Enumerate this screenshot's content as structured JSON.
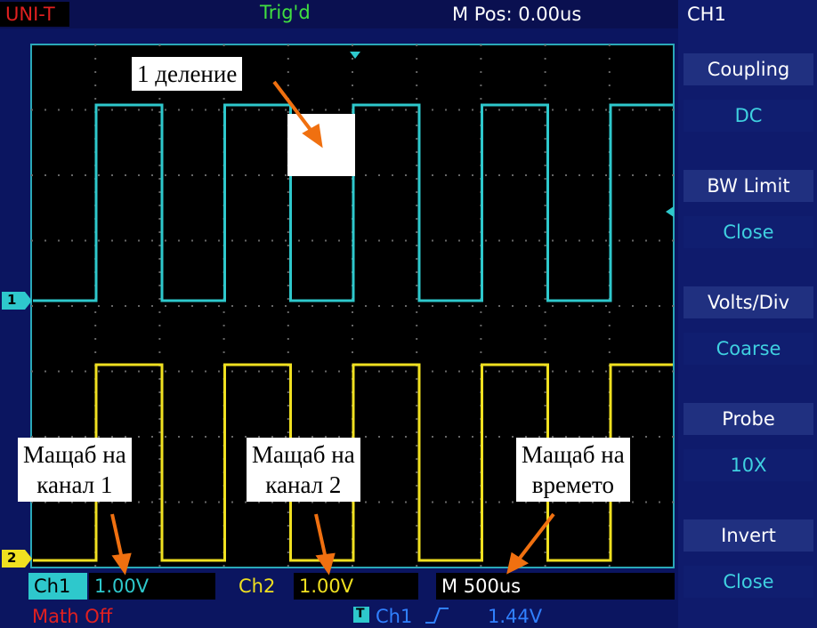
{
  "header": {
    "brand": "UNI-T",
    "status": "Trig'd",
    "position": "M Pos: 0.00us",
    "menu_title": "CH1"
  },
  "menu": [
    {
      "label": "Coupling",
      "value": "DC"
    },
    {
      "label": "BW  Limit",
      "value": "Close"
    },
    {
      "label": "Volts/Div",
      "value": "Coarse"
    },
    {
      "label": "Probe",
      "value": "10X"
    },
    {
      "label": "Invert",
      "value": "Close"
    }
  ],
  "markers": {
    "ch1": "1",
    "ch2": "2"
  },
  "footer": {
    "ch1_label": "Ch1",
    "ch1_scale": "1.00V",
    "ch2_label": "Ch2",
    "ch2_scale": "1.00V",
    "time_scale": "M 500us",
    "math": "Math Off",
    "trigger_icon": "T",
    "trigger_source": "Ch1",
    "trigger_level": "1.44V"
  },
  "annotations": [
    {
      "lines": [
        "1 деление"
      ]
    },
    {
      "lines": [
        "Мащаб на",
        "канал 1"
      ]
    },
    {
      "lines": [
        "Мащаб на",
        "канал 2"
      ]
    },
    {
      "lines": [
        "Мащаб на",
        "времето"
      ]
    }
  ]
}
